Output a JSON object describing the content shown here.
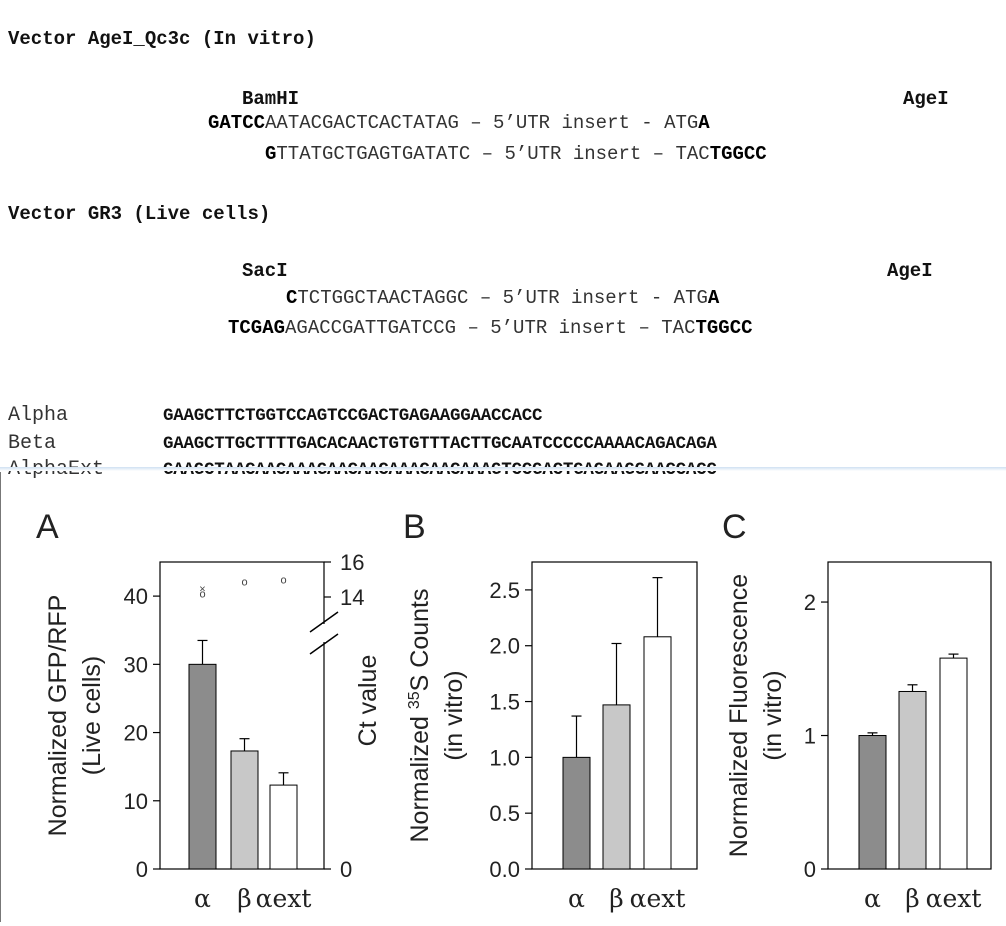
{
  "vectors": [
    {
      "title": "Vector AgeI_Qc3c (In vitro)",
      "left_site": "BamHI",
      "right_site": "AgeI",
      "top_strand": {
        "bold_start": "GATCC",
        "plain": "AATACGACTCACTATAG – 5’UTR insert - ATG",
        "bold_end": "A"
      },
      "bottom_strand": {
        "bold_start": "G",
        "plain": "TTATGCTGAGTGATATC – 5’UTR insert – TAC",
        "bold_end": "TGGCC"
      }
    },
    {
      "title": "Vector GR3 (Live cells)",
      "left_site": "SacI",
      "right_site": "AgeI",
      "top_strand": {
        "bold_start": "C",
        "plain": "TCTGGCTAACTAGGC – 5’UTR insert - ATG",
        "bold_end": "A"
      },
      "bottom_strand": {
        "bold_start": "TCGAG",
        "plain": "AGACCGATTGATCCG – 5’UTR insert – TAC",
        "bold_end": "TGGCC"
      }
    }
  ],
  "sequences": [
    {
      "name": "Alpha",
      "seq": "GAAGCTTCTGGTCCAGTCCGACTGAGAAGGAACCACC"
    },
    {
      "name": "Beta",
      "seq": "GAAGCTTGCTTTTGACACAACTGTGTTTACTTGCAATCCCCCAAAACAGACAGA"
    },
    {
      "name": "AlphaExt",
      "seq": "GAAGCTAACAACAAAGAACAACAAACAACAAAGTCCGACTGAGAAGGAACCACC"
    }
  ],
  "chart_data": [
    {
      "type": "bar",
      "panel": "A",
      "categories": [
        "α",
        "β",
        "αext"
      ],
      "values": [
        30,
        17.3,
        12.3
      ],
      "errors": [
        3.5,
        1.8,
        1.8
      ],
      "ylabel": "Normalized GFP/RFP",
      "ylabel2": "(Live cells)",
      "ylim": [
        0,
        45
      ],
      "yticks": [
        "0",
        "10",
        "20",
        "30",
        "40"
      ],
      "y2label": "Ct value",
      "y2ticks": [
        "0",
        "14",
        "16"
      ],
      "ct_markers": [
        {
          "category": "α",
          "symbols": [
            "×",
            "o"
          ],
          "ct": [
            14.5,
            14.2
          ]
        },
        {
          "category": "β",
          "symbols": [
            "o"
          ],
          "ct": [
            14.9
          ]
        },
        {
          "category": "αext",
          "symbols": [
            "o"
          ],
          "ct": [
            15.0
          ]
        }
      ],
      "colors": [
        "#8c8c8c",
        "#c8c8c8",
        "#ffffff"
      ]
    },
    {
      "type": "bar",
      "panel": "B",
      "categories": [
        "α",
        "β",
        "αext"
      ],
      "values": [
        1.0,
        1.47,
        2.08
      ],
      "errors": [
        0.37,
        0.55,
        0.53
      ],
      "ylabel_pre": "Normalized ",
      "ylabel_sup": "35",
      "ylabel_post": "S Counts",
      "ylabel2": "(in vitro)",
      "ylim": [
        0,
        2.75
      ],
      "yticks": [
        "0.0",
        "0.5",
        "1.0",
        "1.5",
        "2.0",
        "2.5"
      ],
      "colors": [
        "#8c8c8c",
        "#c8c8c8",
        "#ffffff"
      ]
    },
    {
      "type": "bar",
      "panel": "C",
      "categories": [
        "α",
        "β",
        "αext"
      ],
      "values": [
        1.0,
        1.33,
        1.58
      ],
      "errors": [
        0.02,
        0.05,
        0.03
      ],
      "ylabel": "Normalized Fluorescence",
      "ylabel2": "(in vitro)",
      "ylim": [
        0,
        2.3
      ],
      "yticks": [
        "0",
        "1",
        "2"
      ],
      "colors": [
        "#8c8c8c",
        "#c8c8c8",
        "#ffffff"
      ]
    }
  ]
}
